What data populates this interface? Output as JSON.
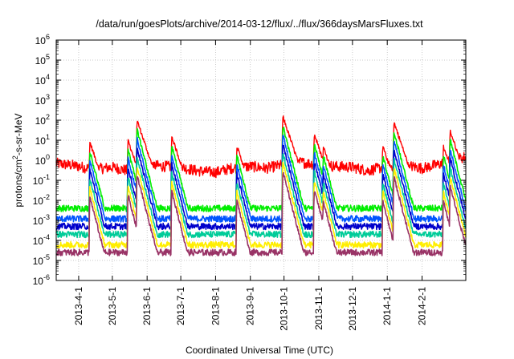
{
  "chart_data": {
    "type": "line",
    "title": "/data/run/goesPlots/archive/2014-03-12/flux/../flux/366daysMarsFluxes.txt",
    "xlabel": "Coordinated Universal Time (UTC)",
    "ylabel": "protons/cm²-s-sr-MeV",
    "ylabel_parts": {
      "pre": "protons/cm",
      "sup": "2",
      "post": "-s-sr-MeV"
    },
    "y_scale": "log",
    "ylim": [
      1e-06,
      1000000.0
    ],
    "y_tick_labels": [
      {
        "base": "10",
        "exp": "-6",
        "value": 1e-06
      },
      {
        "base": "10",
        "exp": "-5",
        "value": 1e-05
      },
      {
        "base": "10",
        "exp": "-4",
        "value": 0.0001
      },
      {
        "base": "10",
        "exp": "-3",
        "value": 0.001
      },
      {
        "base": "10",
        "exp": "-2",
        "value": 0.01
      },
      {
        "base": "10",
        "exp": "-1",
        "value": 0.1
      },
      {
        "base": "10",
        "exp": "0",
        "value": 1
      },
      {
        "base": "10",
        "exp": "1",
        "value": 10
      },
      {
        "base": "10",
        "exp": "2",
        "value": 100
      },
      {
        "base": "10",
        "exp": "3",
        "value": 1000
      },
      {
        "base": "10",
        "exp": "4",
        "value": 10000
      },
      {
        "base": "10",
        "exp": "5",
        "value": 100000
      },
      {
        "base": "10",
        "exp": "6",
        "value": 1000000
      }
    ],
    "xlim": [
      "2013-03-12",
      "2014-03-12"
    ],
    "x_tick_labels": [
      "2013-4-1",
      "2013-5-1",
      "2013-6-1",
      "2013-7-1",
      "2013-8-1",
      "2013-9-1",
      "2013-10-1",
      "2013-11-1",
      "2013-12-1",
      "2014-1-1",
      "2014-2-1"
    ],
    "grid": true,
    "legend": "none",
    "series": [
      {
        "color": "#ff0000",
        "baseline": [
          [
            "2013-03-12",
            0.7
          ],
          [
            "2013-04-01",
            0.5
          ],
          [
            "2013-04-15",
            0.35
          ],
          [
            "2013-05-01",
            0.45
          ],
          [
            "2013-05-15",
            0.3
          ],
          [
            "2013-06-01",
            0.6
          ],
          [
            "2013-06-15",
            0.5
          ],
          [
            "2013-07-01",
            0.45
          ],
          [
            "2013-07-15",
            0.3
          ],
          [
            "2013-08-01",
            0.25
          ],
          [
            "2013-08-15",
            0.4
          ],
          [
            "2013-09-01",
            0.5
          ],
          [
            "2013-09-15",
            0.4
          ],
          [
            "2013-10-01",
            0.6
          ],
          [
            "2013-10-15",
            0.8
          ],
          [
            "2013-11-01",
            0.6
          ],
          [
            "2013-11-15",
            0.5
          ],
          [
            "2013-12-01",
            0.45
          ],
          [
            "2013-12-15",
            0.3
          ],
          [
            "2014-01-01",
            0.5
          ],
          [
            "2014-01-15",
            0.6
          ],
          [
            "2014-02-01",
            0.4
          ],
          [
            "2014-02-15",
            0.6
          ],
          [
            "2014-03-12",
            1.5
          ]
        ]
      },
      {
        "color": "#00ee00",
        "baseline": [
          [
            "2013-03-12",
            0.004
          ],
          [
            "2014-03-12",
            0.004
          ]
        ]
      },
      {
        "color": "#0055ff",
        "baseline": [
          [
            "2013-03-12",
            0.0012
          ],
          [
            "2014-03-12",
            0.0012
          ]
        ]
      },
      {
        "color": "#0000cc",
        "baseline": [
          [
            "2013-03-12",
            0.0005
          ],
          [
            "2014-03-12",
            0.0005
          ]
        ]
      },
      {
        "color": "#00cc99",
        "baseline": [
          [
            "2013-03-12",
            0.0002
          ],
          [
            "2014-03-12",
            0.0002
          ]
        ]
      },
      {
        "color": "#ffee00",
        "baseline": [
          [
            "2013-03-12",
            6e-05
          ],
          [
            "2014-03-12",
            6e-05
          ]
        ]
      },
      {
        "color": "#993366",
        "baseline": [
          [
            "2013-03-12",
            2.5e-05
          ],
          [
            "2014-03-12",
            2.5e-05
          ]
        ]
      }
    ],
    "events": [
      {
        "date": "2013-04-11",
        "peak": 8
      },
      {
        "date": "2013-05-15",
        "peak": 10
      },
      {
        "date": "2013-05-23",
        "peak": 100
      },
      {
        "date": "2013-06-23",
        "peak": 15
      },
      {
        "date": "2013-08-20",
        "peak": 5
      },
      {
        "date": "2013-09-30",
        "peak": 150
      },
      {
        "date": "2013-10-28",
        "peak": 20
      },
      {
        "date": "2013-11-05",
        "peak": 5
      },
      {
        "date": "2013-12-28",
        "peak": 5
      },
      {
        "date": "2014-01-07",
        "peak": 80
      },
      {
        "date": "2014-02-20",
        "peak": 5
      },
      {
        "date": "2014-02-26",
        "peak": 30
      }
    ]
  }
}
